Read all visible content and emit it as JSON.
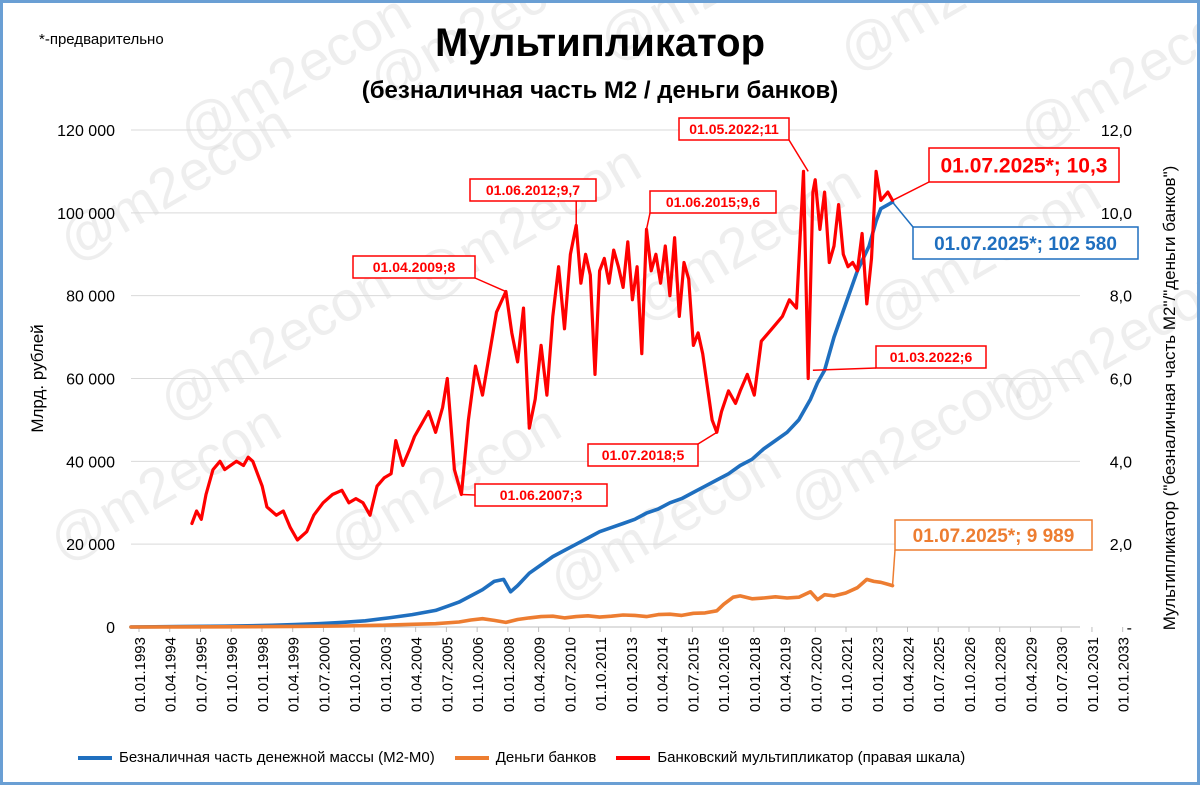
{
  "note": "*-предварительно",
  "title": "Мультипликатор",
  "subtitle": "(безналичная часть М2 / деньги банков)",
  "watermark": "@m2econ",
  "colors": {
    "m2": "#1f6fbf",
    "banks": "#ed7d31",
    "multiplier": "#ff0000",
    "frame": "#6a9fd4"
  },
  "legend": [
    {
      "key": "m2",
      "label": "Безналичная часть денежной массы (М2-М0)"
    },
    {
      "key": "banks",
      "label": "Деньги банков"
    },
    {
      "key": "multiplier",
      "label": "Банковский мультипликатор (правая шкала)"
    }
  ],
  "chart_data": {
    "type": "line",
    "ylabel": "Млрд. рублей",
    "y2label": "Мультипликатор (\"безналичная часть М2\"/\"деньги банков\")",
    "ylim": [
      0,
      120000
    ],
    "y2lim": [
      0,
      12
    ],
    "y_ticks": [
      "0",
      "20 000",
      "40 000",
      "60 000",
      "80 000",
      "100 000",
      "120 000"
    ],
    "y2_ticks": [
      "-",
      "2,0",
      "4,0",
      "6,0",
      "8,0",
      "10,0",
      "12,0"
    ],
    "xlim": [
      1993.0,
      2033.5
    ],
    "x_tick_labels": [
      "01.01.1993",
      "01.04.1994",
      "01.07.1995",
      "01.10.1996",
      "01.01.1998",
      "01.04.1999",
      "01.07.2000",
      "01.10.2001",
      "01.01.2003",
      "01.04.2004",
      "01.07.2005",
      "01.10.2006",
      "01.01.2008",
      "01.04.2009",
      "01.07.2010",
      "01.10.2011",
      "01.01.2013",
      "01.04.2014",
      "01.07.2015",
      "01.10.2016",
      "01.01.2018",
      "01.04.2019",
      "01.07.2020",
      "01.10.2021",
      "01.01.2023",
      "01.04.2024",
      "01.07.2025",
      "01.10.2026",
      "01.01.2028",
      "01.04.2029",
      "01.07.2030",
      "01.10.2031",
      "01.01.2033"
    ],
    "grid": "horizontal",
    "legend_position": "bottom",
    "series": [
      {
        "key": "m2",
        "name": "Безналичная часть денежной массы (М2-М0)",
        "axis": "left",
        "x": [
          1993.0,
          1995.0,
          1997.0,
          1999.0,
          2000.0,
          2001.0,
          2002.0,
          2003.0,
          2004.0,
          2005.0,
          2006.0,
          2006.5,
          2007.0,
          2007.5,
          2008.0,
          2008.5,
          2008.9,
          2009.2,
          2009.5,
          2010.0,
          2010.5,
          2011.0,
          2011.5,
          2012.0,
          2012.5,
          2013.0,
          2013.5,
          2014.0,
          2014.5,
          2015.0,
          2015.5,
          2016.0,
          2016.5,
          2017.0,
          2017.5,
          2018.0,
          2018.5,
          2019.0,
          2019.5,
          2020.0,
          2020.5,
          2021.0,
          2021.5,
          2022.0,
          2022.3,
          2022.6,
          2023.0,
          2023.5,
          2024.0,
          2024.5,
          2024.8,
          2025.0,
          2025.5
        ],
        "values": [
          0,
          100,
          200,
          400,
          600,
          800,
          1100,
          1500,
          2200,
          3000,
          4000,
          5000,
          6000,
          7500,
          9000,
          11000,
          11500,
          8500,
          10000,
          13000,
          15000,
          17000,
          18500,
          20000,
          21500,
          23000,
          24000,
          25000,
          26000,
          27500,
          28500,
          30000,
          31000,
          32500,
          34000,
          35500,
          37000,
          39000,
          40500,
          43000,
          45000,
          47000,
          50000,
          55000,
          59000,
          62000,
          70000,
          78000,
          86000,
          92000,
          98000,
          101000,
          102580
        ]
      },
      {
        "key": "banks",
        "name": "Деньги банков",
        "axis": "left",
        "x": [
          1993.0,
          1995.0,
          1997.0,
          1999.0,
          2000.0,
          2002.0,
          2004.0,
          2005.0,
          2006.0,
          2007.0,
          2007.5,
          2008.0,
          2008.5,
          2009.0,
          2009.5,
          2010.0,
          2010.5,
          2011.0,
          2011.5,
          2012.0,
          2012.5,
          2013.0,
          2013.5,
          2014.0,
          2014.5,
          2015.0,
          2015.5,
          2016.0,
          2016.5,
          2017.0,
          2017.5,
          2018.0,
          2018.3,
          2018.7,
          2019.0,
          2019.5,
          2020.0,
          2020.5,
          2021.0,
          2021.5,
          2022.0,
          2022.3,
          2022.6,
          2023.0,
          2023.5,
          2024.0,
          2024.4,
          2024.7,
          2025.0,
          2025.5
        ],
        "values": [
          0,
          30,
          60,
          100,
          150,
          250,
          450,
          650,
          800,
          1200,
          1700,
          2000,
          1600,
          1100,
          1800,
          2200,
          2500,
          2600,
          2200,
          2500,
          2700,
          2400,
          2600,
          2900,
          2800,
          2500,
          3000,
          3100,
          2800,
          3300,
          3400,
          3900,
          5500,
          7200,
          7500,
          6800,
          7000,
          7300,
          7000,
          7200,
          8500,
          6600,
          7800,
          7500,
          8200,
          9500,
          11500,
          11000,
          10800,
          9989
        ]
      },
      {
        "key": "multiplier",
        "name": "Банковский мультипликатор (правая шкала)",
        "axis": "right",
        "x": [
          1995.6,
          1995.8,
          1996.0,
          1996.2,
          1996.5,
          1996.8,
          1997.0,
          1997.5,
          1997.8,
          1998.0,
          1998.2,
          1998.6,
          1998.8,
          1999.2,
          1999.5,
          1999.8,
          2000.1,
          2000.5,
          2000.8,
          2001.2,
          2001.6,
          2002.0,
          2002.3,
          2002.6,
          2002.9,
          2003.2,
          2003.5,
          2003.8,
          2004.1,
          2004.3,
          2004.6,
          2004.9,
          2005.1,
          2005.4,
          2005.7,
          2006.0,
          2006.3,
          2006.5,
          2006.8,
          2007.1,
          2007.4,
          2007.7,
          2008.0,
          2008.3,
          2008.6,
          2009.0,
          2009.25,
          2009.5,
          2009.75,
          2010.0,
          2010.25,
          2010.5,
          2010.75,
          2011.0,
          2011.25,
          2011.5,
          2011.75,
          2012.0,
          2012.2,
          2012.4,
          2012.6,
          2012.8,
          2013.0,
          2013.2,
          2013.4,
          2013.6,
          2013.8,
          2014.0,
          2014.2,
          2014.4,
          2014.6,
          2014.8,
          2015.0,
          2015.2,
          2015.4,
          2015.6,
          2015.8,
          2016.0,
          2016.2,
          2016.4,
          2016.6,
          2016.8,
          2017.0,
          2017.2,
          2017.4,
          2017.6,
          2017.8,
          2018.0,
          2018.2,
          2018.5,
          2018.8,
          2019.0,
          2019.3,
          2019.6,
          2019.9,
          2020.2,
          2020.5,
          2020.8,
          2021.1,
          2021.4,
          2021.7,
          2021.9,
          2022.1,
          2022.2,
          2022.4,
          2022.6,
          2022.8,
          2023.0,
          2023.2,
          2023.4,
          2023.6,
          2023.8,
          2024.0,
          2024.2,
          2024.4,
          2024.6,
          2024.8,
          2025.0,
          2025.3,
          2025.5
        ],
        "values": [
          2.5,
          2.8,
          2.6,
          3.2,
          3.8,
          4.0,
          3.8,
          4.0,
          3.9,
          4.1,
          4.0,
          3.4,
          2.9,
          2.7,
          2.8,
          2.4,
          2.1,
          2.3,
          2.7,
          3.0,
          3.2,
          3.3,
          3.0,
          3.1,
          3.0,
          2.7,
          3.4,
          3.6,
          3.7,
          4.5,
          3.9,
          4.3,
          4.6,
          4.9,
          5.2,
          4.7,
          5.3,
          6.0,
          3.8,
          3.2,
          5.0,
          6.3,
          5.6,
          6.6,
          7.6,
          8.1,
          7.1,
          6.4,
          7.7,
          4.8,
          5.5,
          6.8,
          5.6,
          7.5,
          8.7,
          7.2,
          9.0,
          9.7,
          8.3,
          9.0,
          8.5,
          6.1,
          8.6,
          8.9,
          8.3,
          9.1,
          8.7,
          8.2,
          9.3,
          7.9,
          8.7,
          6.6,
          9.6,
          8.6,
          9.0,
          8.3,
          9.2,
          8.0,
          9.4,
          7.5,
          8.8,
          8.4,
          6.8,
          7.1,
          6.6,
          5.8,
          5.0,
          4.7,
          5.2,
          5.7,
          5.4,
          5.7,
          6.1,
          5.6,
          6.9,
          7.1,
          7.3,
          7.5,
          7.9,
          7.7,
          11.0,
          6.0,
          10.5,
          10.8,
          9.6,
          10.5,
          8.8,
          9.2,
          10.2,
          9.0,
          8.7,
          8.8,
          8.6,
          9.5,
          7.8,
          8.9,
          11.0,
          10.3,
          10.5,
          10.3
        ]
      }
    ],
    "annotations": [
      {
        "key": "a2007",
        "series": "multiplier",
        "x": 2007.1,
        "y": 3.2,
        "text": "01.06.2007;3"
      },
      {
        "key": "a2009",
        "series": "multiplier",
        "x": 2009.0,
        "y": 8.1,
        "text": "01.04.2009;8"
      },
      {
        "key": "a2012",
        "series": "multiplier",
        "x": 2012.0,
        "y": 9.7,
        "text": "01.06.2012;9,7"
      },
      {
        "key": "a2015",
        "series": "multiplier",
        "x": 2015.0,
        "y": 9.6,
        "text": "01.06.2015;9,6"
      },
      {
        "key": "a2018",
        "series": "multiplier",
        "x": 2018.0,
        "y": 4.7,
        "text": "01.07.2018;5"
      },
      {
        "key": "a2022may",
        "series": "multiplier",
        "x": 2021.9,
        "y": 11.0,
        "text": "01.05.2022;11"
      },
      {
        "key": "a2022mar",
        "series": "multiplier",
        "x": 2022.1,
        "y": 6.2,
        "text": "01.03.2022;6"
      },
      {
        "key": "aMult",
        "series": "multiplier",
        "x": 2025.5,
        "y": 10.3,
        "text": "01.07.2025*; 10,3"
      },
      {
        "key": "aM2",
        "series": "m2",
        "x": 2025.5,
        "y": 102580,
        "text": "01.07.2025*; 102 580"
      },
      {
        "key": "aBanks",
        "series": "banks",
        "x": 2025.5,
        "y": 9989,
        "text": "01.07.2025*; 9 989"
      }
    ]
  }
}
